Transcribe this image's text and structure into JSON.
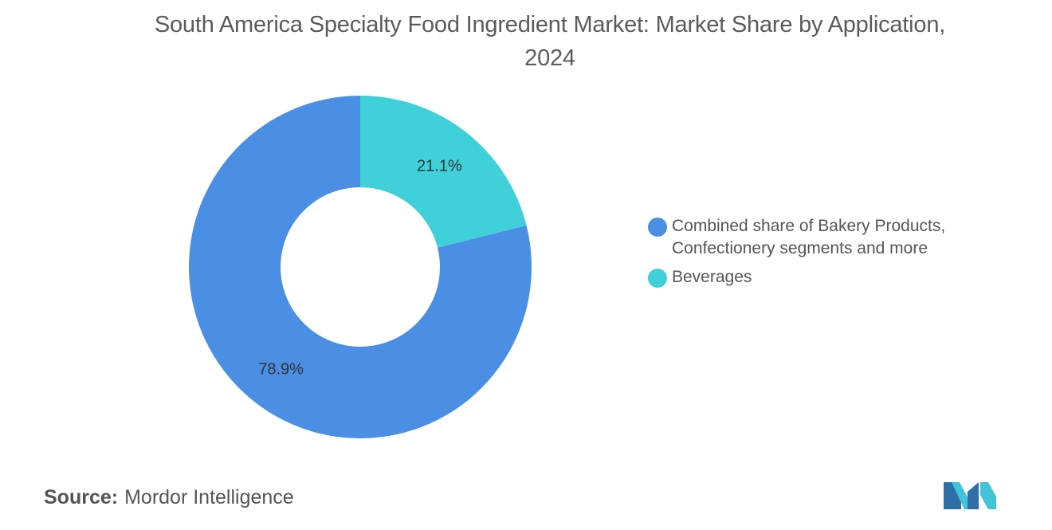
{
  "chart_data": {
    "type": "pie",
    "title": "South America Specialty Food Ingredient Market: Market Share by Application, 2024",
    "slices": [
      {
        "name": "Beverages",
        "value": 21.1,
        "label": "21.1%",
        "color": "#40d0da"
      },
      {
        "name": "Combined share of Bakery Products, Confectionery segments and more",
        "value": 78.9,
        "label": "78.9%",
        "color": "#4a8fe3"
      }
    ],
    "donut": true,
    "legend_position": "right"
  },
  "legend": [
    {
      "label": "Combined share of Bakery Products, Confectionery segments and more",
      "color": "#4a8fe3"
    },
    {
      "label": "Beverages",
      "color": "#40d0da"
    }
  ],
  "source": {
    "label": "Source:",
    "value": "Mordor Intelligence"
  },
  "logo": {
    "icon": "mordor-intelligence-logo",
    "colors": [
      "#2e6fa8",
      "#40c4d6"
    ]
  }
}
